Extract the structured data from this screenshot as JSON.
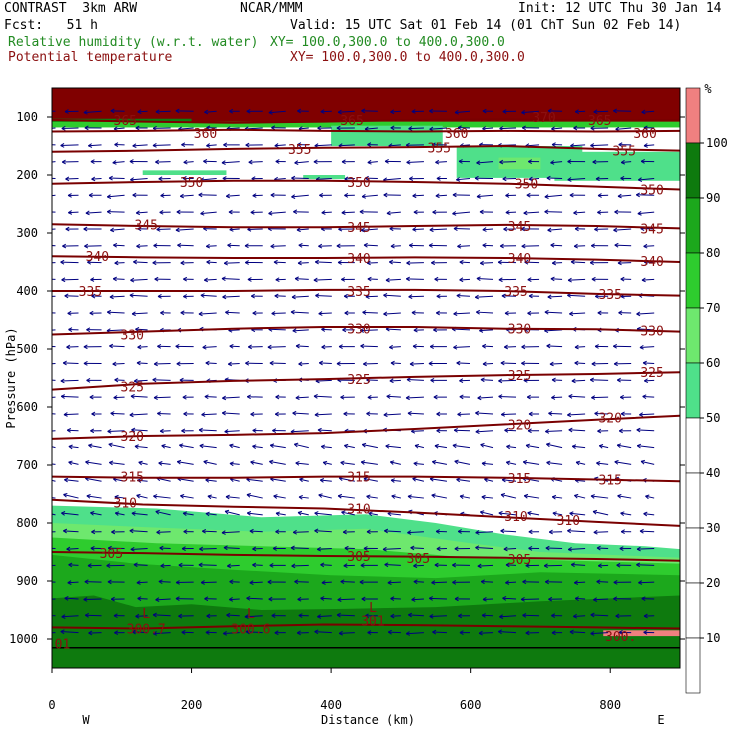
{
  "header": {
    "model": "CONTRAST  3km ARW",
    "center": "NCAR/MMM",
    "init": "Init: 12 UTC Thu 30 Jan 14",
    "fcst": "Fcst:   51 h",
    "valid": "Valid: 15 UTC Sat 01 Feb 14 (01 ChT Sun 02 Feb 14)",
    "rh_label": "Relative humidity (w.r.t. water)",
    "rh_xy": "XY= 100.0,300.0 to 400.0,300.0",
    "theta_label": "Potential temperature",
    "theta_xy": "XY= 100.0,300.0 to 400.0,300.0"
  },
  "colors": {
    "rh_label": "#228b22",
    "theta_label": "#8b1010",
    "contour": "#7a0000",
    "barb": "#000080",
    "rh_50": "#4fe08a",
    "rh_60": "#6ee86e",
    "rh_70": "#2ecc2e",
    "rh_80": "#1ca81c",
    "rh_90": "#0e7a0e",
    "rh_100": "#f08080",
    "stratosphere": "#800000"
  },
  "chart_data": {
    "type": "cross-section",
    "x_label": "Distance (km)",
    "y_label": "Pressure (hPa)",
    "x_range": [
      0,
      900
    ],
    "x_ticks": [
      "0",
      "200",
      "400",
      "600",
      "800"
    ],
    "y_range": [
      1050,
      50
    ],
    "y_ticks": [
      "100",
      "200",
      "300",
      "400",
      "500",
      "600",
      "700",
      "800",
      "900",
      "1000"
    ],
    "x_end_labels": {
      "left": "W",
      "right": "E"
    },
    "colorbar": {
      "unit": "%",
      "ticks": [
        "10",
        "20",
        "30",
        "40",
        "50",
        "60",
        "70",
        "80",
        "90",
        "100"
      ]
    },
    "theta_contours": [
      {
        "label": "365",
        "p": [
          105,
          108,
          110,
          108,
          105,
          104,
          106,
          105
        ]
      },
      {
        "label": "360",
        "p": [
          125,
          124,
          122,
          124,
          125,
          124,
          125,
          124
        ]
      },
      {
        "label": "355",
        "p": [
          160,
          158,
          155,
          153,
          152,
          150,
          155,
          158
        ]
      },
      {
        "label": "350",
        "p": [
          215,
          212,
          210,
          210,
          212,
          215,
          220,
          225
        ]
      },
      {
        "label": "345",
        "p": [
          285,
          288,
          290,
          290,
          288,
          286,
          288,
          292
        ]
      },
      {
        "label": "340",
        "p": [
          340,
          342,
          343,
          343,
          342,
          343,
          346,
          350
        ]
      },
      {
        "label": "335",
        "p": [
          400,
          400,
          400,
          398,
          398,
          400,
          405,
          408
        ]
      },
      {
        "label": "330",
        "p": [
          475,
          470,
          465,
          462,
          462,
          465,
          466,
          470
        ]
      },
      {
        "label": "325",
        "p": [
          570,
          560,
          555,
          552,
          548,
          545,
          543,
          540
        ]
      },
      {
        "label": "320",
        "p": [
          655,
          650,
          648,
          645,
          638,
          630,
          622,
          615
        ]
      },
      {
        "label": "315",
        "p": [
          720,
          722,
          722,
          720,
          720,
          722,
          725,
          728
        ]
      },
      {
        "label": "310",
        "p": [
          760,
          768,
          772,
          775,
          782,
          790,
          798,
          805
        ]
      },
      {
        "label": "305",
        "p": [
          850,
          852,
          855,
          857,
          858,
          860,
          862,
          865
        ]
      },
      {
        "label": "300",
        "p": [
          980,
          982,
          978,
          975,
          976,
          978,
          980,
          982
        ]
      }
    ],
    "theta_labels_extra": [
      {
        "text": "365",
        "x": 105,
        "p": 105
      },
      {
        "text": "360",
        "x": 220,
        "p": 128
      },
      {
        "text": "365",
        "x": 430,
        "p": 105
      },
      {
        "text": "360",
        "x": 580,
        "p": 128
      },
      {
        "text": "370",
        "x": 705,
        "p": 100
      },
      {
        "text": "365",
        "x": 785,
        "p": 105
      },
      {
        "text": "360",
        "x": 850,
        "p": 128
      },
      {
        "text": "355",
        "x": 355,
        "p": 155
      },
      {
        "text": "355",
        "x": 555,
        "p": 153
      },
      {
        "text": "355",
        "x": 820,
        "p": 158
      },
      {
        "text": "350",
        "x": 200,
        "p": 212
      },
      {
        "text": "350",
        "x": 440,
        "p": 212
      },
      {
        "text": "350",
        "x": 680,
        "p": 215
      },
      {
        "text": "350",
        "x": 860,
        "p": 225
      },
      {
        "text": "345",
        "x": 135,
        "p": 285
      },
      {
        "text": "345",
        "x": 440,
        "p": 290
      },
      {
        "text": "345",
        "x": 670,
        "p": 288
      },
      {
        "text": "345",
        "x": 860,
        "p": 292
      },
      {
        "text": "340",
        "x": 65,
        "p": 340
      },
      {
        "text": "340",
        "x": 440,
        "p": 343
      },
      {
        "text": "340",
        "x": 670,
        "p": 343
      },
      {
        "text": "340",
        "x": 860,
        "p": 348
      },
      {
        "text": "335",
        "x": 55,
        "p": 400
      },
      {
        "text": "335",
        "x": 440,
        "p": 400
      },
      {
        "text": "335",
        "x": 665,
        "p": 400
      },
      {
        "text": "335",
        "x": 800,
        "p": 405
      },
      {
        "text": "330",
        "x": 115,
        "p": 475
      },
      {
        "text": "330",
        "x": 440,
        "p": 465
      },
      {
        "text": "330",
        "x": 670,
        "p": 465
      },
      {
        "text": "330",
        "x": 860,
        "p": 468
      },
      {
        "text": "325",
        "x": 115,
        "p": 565
      },
      {
        "text": "325",
        "x": 440,
        "p": 552
      },
      {
        "text": "325",
        "x": 670,
        "p": 545
      },
      {
        "text": "325",
        "x": 860,
        "p": 540
      },
      {
        "text": "320",
        "x": 115,
        "p": 650
      },
      {
        "text": "320",
        "x": 670,
        "p": 630
      },
      {
        "text": "320",
        "x": 800,
        "p": 618
      },
      {
        "text": "315",
        "x": 115,
        "p": 720
      },
      {
        "text": "315",
        "x": 440,
        "p": 720
      },
      {
        "text": "315",
        "x": 670,
        "p": 722
      },
      {
        "text": "315",
        "x": 800,
        "p": 725
      },
      {
        "text": "310",
        "x": 105,
        "p": 765
      },
      {
        "text": "310",
        "x": 440,
        "p": 775
      },
      {
        "text": "310",
        "x": 665,
        "p": 788
      },
      {
        "text": "310",
        "x": 740,
        "p": 795
      },
      {
        "text": "305",
        "x": 85,
        "p": 852
      },
      {
        "text": "305",
        "x": 440,
        "p": 857
      },
      {
        "text": "305",
        "x": 525,
        "p": 860
      },
      {
        "text": "305",
        "x": 670,
        "p": 862
      }
    ],
    "surface_labels": [
      {
        "text": "L",
        "x": 135,
        "p": 955
      },
      {
        "text": "300.7",
        "x": 135,
        "p": 982
      },
      {
        "text": "L",
        "x": 285,
        "p": 955
      },
      {
        "text": "300.6",
        "x": 285,
        "p": 982
      },
      {
        "text": "L",
        "x": 460,
        "p": 945
      },
      {
        "text": "301",
        "x": 460,
        "p": 968
      },
      {
        "text": "01",
        "x": 15,
        "p": 1008
      },
      {
        "text": "300.",
        "x": 815,
        "p": 995
      }
    ]
  }
}
